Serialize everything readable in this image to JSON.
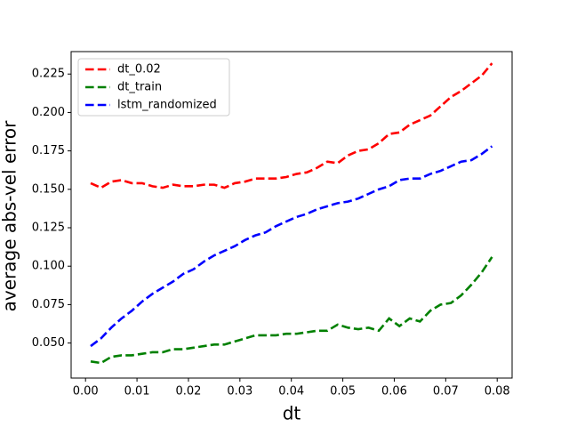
{
  "chart_data": {
    "type": "line",
    "xlabel": "dt",
    "ylabel": "average abs-vel error",
    "x": [
      0.001,
      0.003,
      0.005,
      0.007,
      0.009,
      0.011,
      0.013,
      0.015,
      0.017,
      0.019,
      0.021,
      0.023,
      0.025,
      0.027,
      0.029,
      0.031,
      0.033,
      0.035,
      0.037,
      0.039,
      0.041,
      0.043,
      0.045,
      0.047,
      0.049,
      0.051,
      0.053,
      0.055,
      0.057,
      0.059,
      0.061,
      0.063,
      0.065,
      0.067,
      0.069,
      0.071,
      0.073,
      0.075,
      0.077,
      0.079
    ],
    "series": [
      {
        "name": "dt_0.02",
        "color": "#ff0000",
        "values": [
          0.154,
          0.151,
          0.155,
          0.156,
          0.154,
          0.154,
          0.152,
          0.151,
          0.153,
          0.152,
          0.152,
          0.153,
          0.153,
          0.151,
          0.154,
          0.155,
          0.157,
          0.157,
          0.157,
          0.158,
          0.16,
          0.161,
          0.164,
          0.168,
          0.167,
          0.172,
          0.175,
          0.176,
          0.18,
          0.186,
          0.187,
          0.192,
          0.195,
          0.198,
          0.204,
          0.21,
          0.214,
          0.219,
          0.224,
          0.232
        ]
      },
      {
        "name": "dt_train",
        "color": "#008000",
        "values": [
          0.038,
          0.037,
          0.041,
          0.042,
          0.042,
          0.043,
          0.044,
          0.044,
          0.046,
          0.046,
          0.047,
          0.048,
          0.049,
          0.049,
          0.051,
          0.053,
          0.055,
          0.055,
          0.055,
          0.056,
          0.056,
          0.057,
          0.058,
          0.058,
          0.062,
          0.06,
          0.059,
          0.06,
          0.058,
          0.066,
          0.061,
          0.066,
          0.064,
          0.071,
          0.075,
          0.076,
          0.081,
          0.088,
          0.096,
          0.106
        ]
      },
      {
        "name": "lstm_randomized",
        "color": "#0000ff",
        "values": [
          0.048,
          0.053,
          0.06,
          0.066,
          0.071,
          0.077,
          0.082,
          0.086,
          0.09,
          0.095,
          0.098,
          0.103,
          0.107,
          0.11,
          0.113,
          0.117,
          0.12,
          0.122,
          0.126,
          0.129,
          0.132,
          0.134,
          0.137,
          0.139,
          0.141,
          0.142,
          0.144,
          0.147,
          0.15,
          0.152,
          0.156,
          0.157,
          0.157,
          0.16,
          0.162,
          0.165,
          0.168,
          0.169,
          0.173,
          0.178
        ]
      }
    ],
    "xlim": [
      -0.0028,
      0.0829
    ],
    "ylim": [
      0.0272,
      0.2396
    ],
    "xticks": [
      {
        "value": 0,
        "label": "0.00"
      },
      {
        "value": 0.01,
        "label": "0.01"
      },
      {
        "value": 0.02,
        "label": "0.02"
      },
      {
        "value": 0.03,
        "label": "0.03"
      },
      {
        "value": 0.04,
        "label": "0.04"
      },
      {
        "value": 0.05,
        "label": "0.05"
      },
      {
        "value": 0.06,
        "label": "0.06"
      },
      {
        "value": 0.07,
        "label": "0.07"
      },
      {
        "value": 0.08,
        "label": "0.08"
      }
    ],
    "yticks": [
      {
        "value": 0.05,
        "label": "0.050"
      },
      {
        "value": 0.075,
        "label": "0.075"
      },
      {
        "value": 0.1,
        "label": "0.100"
      },
      {
        "value": 0.125,
        "label": "0.125"
      },
      {
        "value": 0.15,
        "label": "0.150"
      },
      {
        "value": 0.175,
        "label": "0.175"
      },
      {
        "value": 0.2,
        "label": "0.200"
      },
      {
        "value": 0.225,
        "label": "0.225"
      }
    ],
    "legend": "upper left",
    "grid": false
  }
}
